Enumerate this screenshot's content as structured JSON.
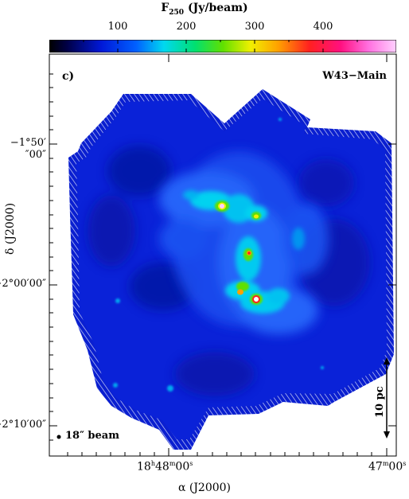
{
  "colorbar": {
    "title_main": "F",
    "title_sub": "250",
    "title_unit": " (Jy/beam)",
    "ticks": [
      "100",
      "200",
      "300",
      "400"
    ]
  },
  "panel": {
    "label": "c)",
    "region": "W43−Main"
  },
  "axes": {
    "ylabel": "δ (J2000)",
    "xlabel": "α (J2000)",
    "yticks": [
      "−1°50′″00″",
      "−2°00′00″",
      "−2°10′00″"
    ],
    "xticks": [
      {
        "main": "18",
        "h": "h",
        "mid": "48",
        "m": "m",
        "tail": "00",
        "s": "s"
      },
      {
        "main": "47",
        "m": "m",
        "tail": "00",
        "s": "s"
      }
    ]
  },
  "annotations": {
    "beam": "18″ beam",
    "scale": "10 pc"
  }
}
